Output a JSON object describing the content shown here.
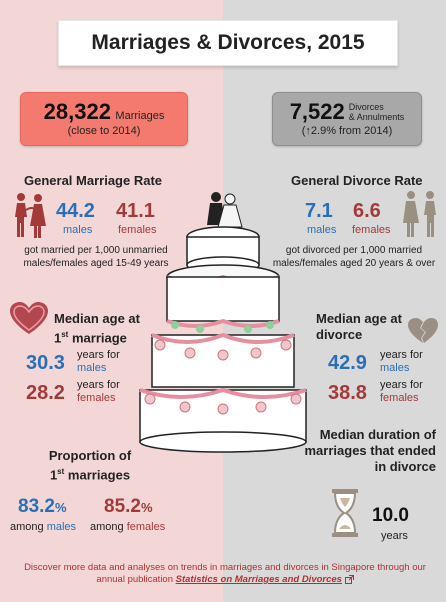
{
  "title": "Marriages & Divorces, 2015",
  "marriages_box": {
    "value": "28,322",
    "label": "Marriages",
    "sub": "(close to 2014)"
  },
  "divorces_box": {
    "value": "7,522",
    "label_line1": "Divorces",
    "label_line2": "& Annulments",
    "arrow": "↑",
    "sub": "2.9% from 2014)",
    "sub_prefix": "("
  },
  "marriage_rate": {
    "title": "General Marriage Rate",
    "male_value": "44.2",
    "male_label": "males",
    "female_value": "41.1",
    "female_label": "females",
    "desc_line1": "got married per 1,000 unmarried",
    "desc_line2": "males/females aged 15-49 years"
  },
  "divorce_rate": {
    "title": "General Divorce Rate",
    "male_value": "7.1",
    "male_label": "males",
    "female_value": "6.6",
    "female_label": "females",
    "desc_line1": "got divorced per 1,000 married",
    "desc_line2": "males/females aged 20 years & over"
  },
  "median_marriage": {
    "title_line1": "Median age at",
    "title_line2_num": "1",
    "title_line2_sup": "st",
    "title_line2_rest": " marriage",
    "male_value": "30.3",
    "male_unit1": "years for",
    "male_unit2": "males",
    "female_value": "28.2",
    "female_unit1": "years for",
    "female_unit2": "females"
  },
  "median_divorce": {
    "title_line1": "Median age at",
    "title_line2": "divorce",
    "male_value": "42.9",
    "male_unit1": "years for",
    "male_unit2": "males",
    "female_value": "38.8",
    "female_unit1": "years for",
    "female_unit2": "females"
  },
  "proportion": {
    "title_line1": "Proportion of",
    "title_line2_num": "1",
    "title_line2_sup": "st",
    "title_line2_rest": " marriages",
    "male_value": "83.2",
    "male_pct": "%",
    "male_prefix": "among ",
    "male_label": "males",
    "female_value": "85.2",
    "female_pct": "%",
    "female_prefix": "among ",
    "female_label": "females"
  },
  "duration": {
    "title_line1": "Median duration of",
    "title_line2": "marriages that ended",
    "title_line3": "in divorce",
    "value": "10.0",
    "unit": "years"
  },
  "footer": {
    "line1": "Discover more data and analyses on trends in marriages and divorces in Singapore through our",
    "line2_prefix": "annual publication ",
    "link": "Statistics on Marriages and Divorces"
  },
  "colors": {
    "left_bg": "#f3d7d7",
    "right_bg": "#d9d9d9",
    "blue": "#2a6fb6",
    "red": "#a33a3a",
    "salmon": "#f47a70"
  },
  "icons": [
    "couple-icon",
    "divorced-couple-icon",
    "heart-icon",
    "broken-heart-icon",
    "hourglass-icon",
    "wedding-cake-icon",
    "external-link-icon"
  ]
}
